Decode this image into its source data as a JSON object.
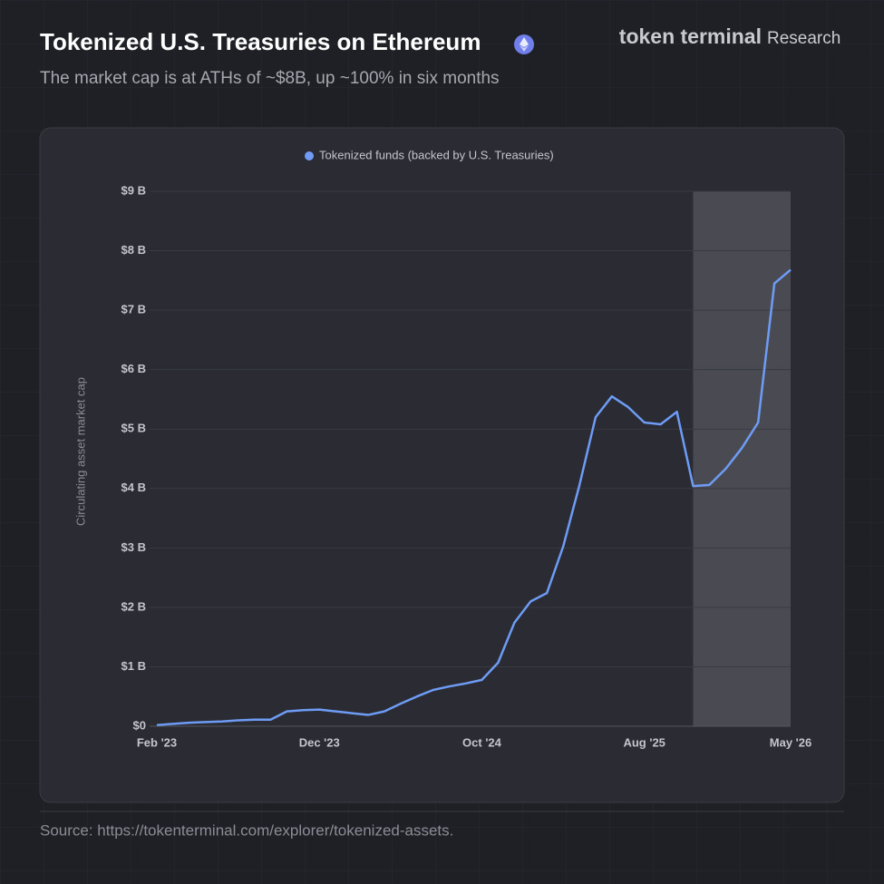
{
  "chart_data": {
    "type": "line",
    "title": "Tokenized U.S. Treasuries on Ethereum",
    "subtitle": "The market cap is at ATHs of ~$8B, up ~100% in six months",
    "brand": "token terminal",
    "brand_suffix": "Research",
    "source": "Source: https://tokenterminal.com/explorer/tokenized-assets.",
    "y_label": "Circulating asset market cap",
    "categories": [
      "Feb '23",
      null,
      null,
      null,
      null,
      null,
      null,
      null,
      null,
      null,
      "Dec '23",
      null,
      null,
      null,
      null,
      null,
      null,
      null,
      null,
      null,
      "Oct '24",
      null,
      null,
      null,
      null,
      null,
      null,
      null,
      null,
      null,
      "Aug '25",
      null,
      null,
      null,
      null,
      null,
      null,
      null,
      null,
      "May '26"
    ],
    "series": [
      {
        "name": "Tokenized funds (backed by U.S. Treasuries)",
        "color": "#6e9cf5",
        "values": [
          0.02,
          0.04,
          0.06,
          0.07,
          0.08,
          0.1,
          0.11,
          0.11,
          0.25,
          0.27,
          0.28,
          0.25,
          0.22,
          0.19,
          0.25,
          0.38,
          0.5,
          0.61,
          0.67,
          0.72,
          0.78,
          1.07,
          1.74,
          2.1,
          2.24,
          3.02,
          4.05,
          5.2,
          5.55,
          5.37,
          5.11,
          5.08,
          5.29,
          4.04,
          4.06,
          4.33,
          4.68,
          5.11,
          7.45,
          7.68
        ]
      }
    ],
    "shaded_range": [
      33,
      39
    ],
    "ylim": [
      0,
      9
    ],
    "yticks": [
      {
        "value": 0,
        "label": "$0"
      },
      {
        "value": 1,
        "label": "$1 B"
      },
      {
        "value": 2,
        "label": "$2 B"
      },
      {
        "value": 3,
        "label": "$3 B"
      },
      {
        "value": 4,
        "label": "$4 B"
      },
      {
        "value": 5,
        "label": "$5 B"
      },
      {
        "value": 6,
        "label": "$6 B"
      },
      {
        "value": 7,
        "label": "$7 B"
      },
      {
        "value": 8,
        "label": "$8 B"
      },
      {
        "value": 9,
        "label": "$9 B"
      }
    ],
    "grid": true
  }
}
